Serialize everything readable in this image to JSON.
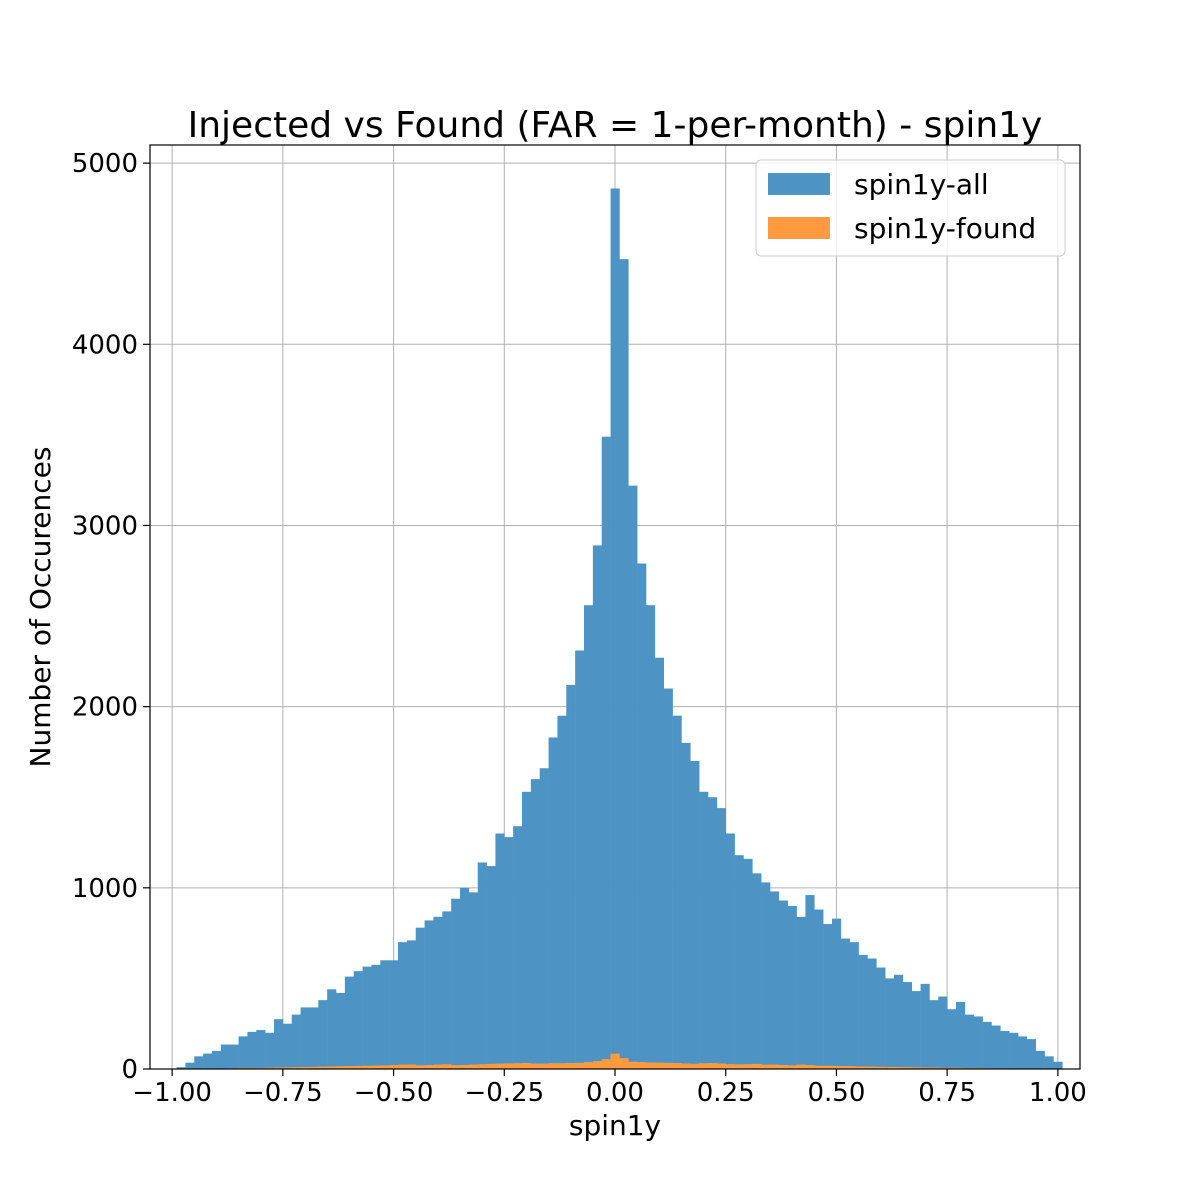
{
  "chart_data": {
    "type": "bar",
    "title": "Injected vs Found (FAR = 1-per-month) - spin1y",
    "xlabel": "spin1y",
    "ylabel": "Number of Occurences",
    "xlim": [
      -1.05,
      1.05
    ],
    "ylim": [
      0,
      5100
    ],
    "xticks": [
      -1.0,
      -0.75,
      -0.5,
      -0.25,
      0.0,
      0.25,
      0.5,
      0.75,
      1.0
    ],
    "xtick_labels": [
      "−1.00",
      "−0.75",
      "−0.50",
      "−0.25",
      "0.00",
      "0.25",
      "0.50",
      "0.75",
      "1.00"
    ],
    "yticks": [
      0,
      1000,
      2000,
      3000,
      4000,
      5000
    ],
    "ytick_labels": [
      "0",
      "1000",
      "2000",
      "3000",
      "4000",
      "5000"
    ],
    "grid": true,
    "legend_position": "upper right",
    "bin_edges_start": -0.99,
    "bin_width": 0.02,
    "series": [
      {
        "name": "spin1y-all",
        "color": "#4d94c4",
        "values": [
          10,
          35,
          70,
          85,
          100,
          135,
          135,
          180,
          205,
          215,
          200,
          275,
          250,
          300,
          340,
          340,
          380,
          440,
          420,
          510,
          540,
          565,
          575,
          600,
          600,
          700,
          710,
          780,
          820,
          840,
          870,
          940,
          1000,
          975,
          1140,
          1120,
          1300,
          1280,
          1340,
          1530,
          1600,
          1660,
          1830,
          1950,
          2120,
          2310,
          2560,
          2890,
          3490,
          4860,
          4470,
          3220,
          2790,
          2560,
          2270,
          2100,
          1950,
          1800,
          1700,
          1530,
          1500,
          1440,
          1300,
          1180,
          1160,
          1080,
          1030,
          980,
          930,
          900,
          840,
          960,
          880,
          800,
          830,
          720,
          700,
          630,
          610,
          560,
          500,
          520,
          480,
          430,
          470,
          380,
          400,
          330,
          370,
          300,
          290,
          260,
          240,
          210,
          200,
          180,
          165,
          100,
          70,
          40
        ]
      },
      {
        "name": "spin1y-found",
        "color": "#ff9a3f",
        "values": [
          0,
          1,
          1,
          2,
          2,
          3,
          4,
          5,
          5,
          6,
          7,
          8,
          9,
          10,
          11,
          12,
          13,
          14,
          15,
          16,
          17,
          18,
          19,
          20,
          22,
          24,
          25,
          20,
          22,
          24,
          26,
          21,
          22,
          24,
          26,
          28,
          30,
          31,
          32,
          33,
          30,
          30,
          32,
          32,
          33,
          34,
          38,
          44,
          55,
          85,
          60,
          40,
          38,
          36,
          35,
          34,
          33,
          30,
          29,
          32,
          33,
          30,
          27,
          25,
          26,
          28,
          24,
          24,
          22,
          20,
          24,
          22,
          18,
          18,
          17,
          16,
          15,
          14,
          13,
          12,
          11,
          11,
          10,
          9,
          8,
          8,
          7,
          6,
          6,
          5,
          5,
          4,
          3,
          3,
          2,
          2,
          1,
          1,
          1,
          0
        ]
      }
    ]
  }
}
